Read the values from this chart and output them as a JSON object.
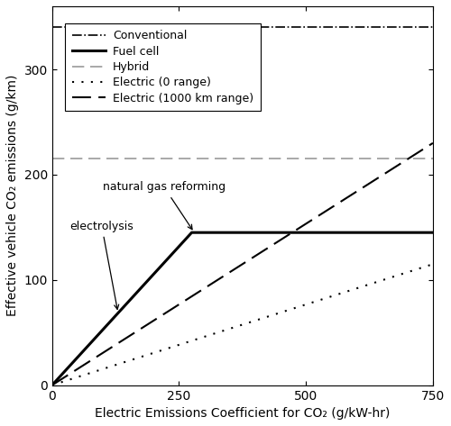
{
  "xlim": [
    0,
    750
  ],
  "ylim": [
    0,
    360
  ],
  "xticks": [
    0,
    250,
    500,
    750
  ],
  "yticks": [
    0,
    100,
    200,
    300
  ],
  "xlabel": "Electric Emissions Coefficient for CO₂ (g/kW-hr)",
  "ylabel": "Effective vehicle CO₂ emissions (g/km)",
  "conventional_y": 340,
  "hybrid_y": 215,
  "fuel_cell_x_break": 275,
  "fuel_cell_y_break": 145,
  "electric_0_slope": 0.1533,
  "electric_1000_slope": 0.3067,
  "legend_entries": [
    "Conventional",
    "Fuel cell",
    "Hybrid",
    "Electric (0 range)",
    "Electric (1000 km range)"
  ],
  "figsize": [
    5.0,
    4.73
  ],
  "dpi": 100
}
